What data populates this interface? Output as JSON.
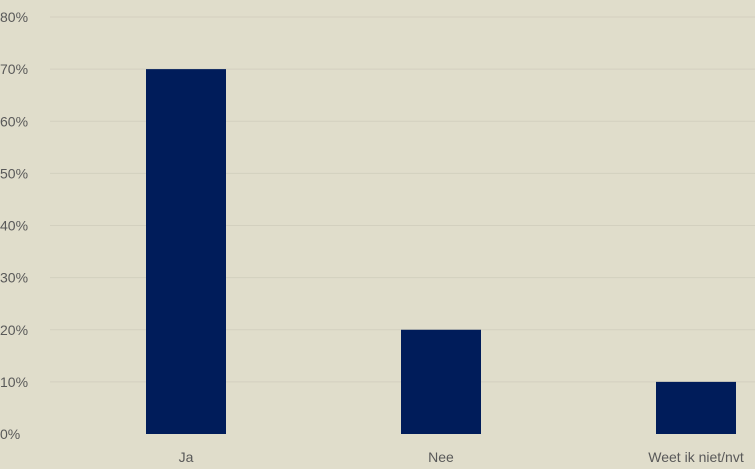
{
  "chart_data": {
    "type": "bar",
    "title": "",
    "xlabel": "",
    "ylabel": "",
    "categories": [
      "Ja",
      "Nee",
      "Weet ik niet/nvt"
    ],
    "values": [
      70,
      20,
      10
    ],
    "unit": "%",
    "ylim": [
      0,
      80
    ],
    "yticks": [
      0,
      10,
      20,
      30,
      40,
      50,
      60,
      70,
      80
    ],
    "ytick_labels": [
      "0%",
      "10%",
      "20%",
      "30%",
      "40%",
      "50%",
      "60%",
      "70%",
      "80%"
    ],
    "grid": true,
    "legend": "none",
    "colors": {
      "bar": "#001c5a",
      "background": "#e0ddcb",
      "grid": "#d3d0bf",
      "text": "#595959"
    }
  }
}
